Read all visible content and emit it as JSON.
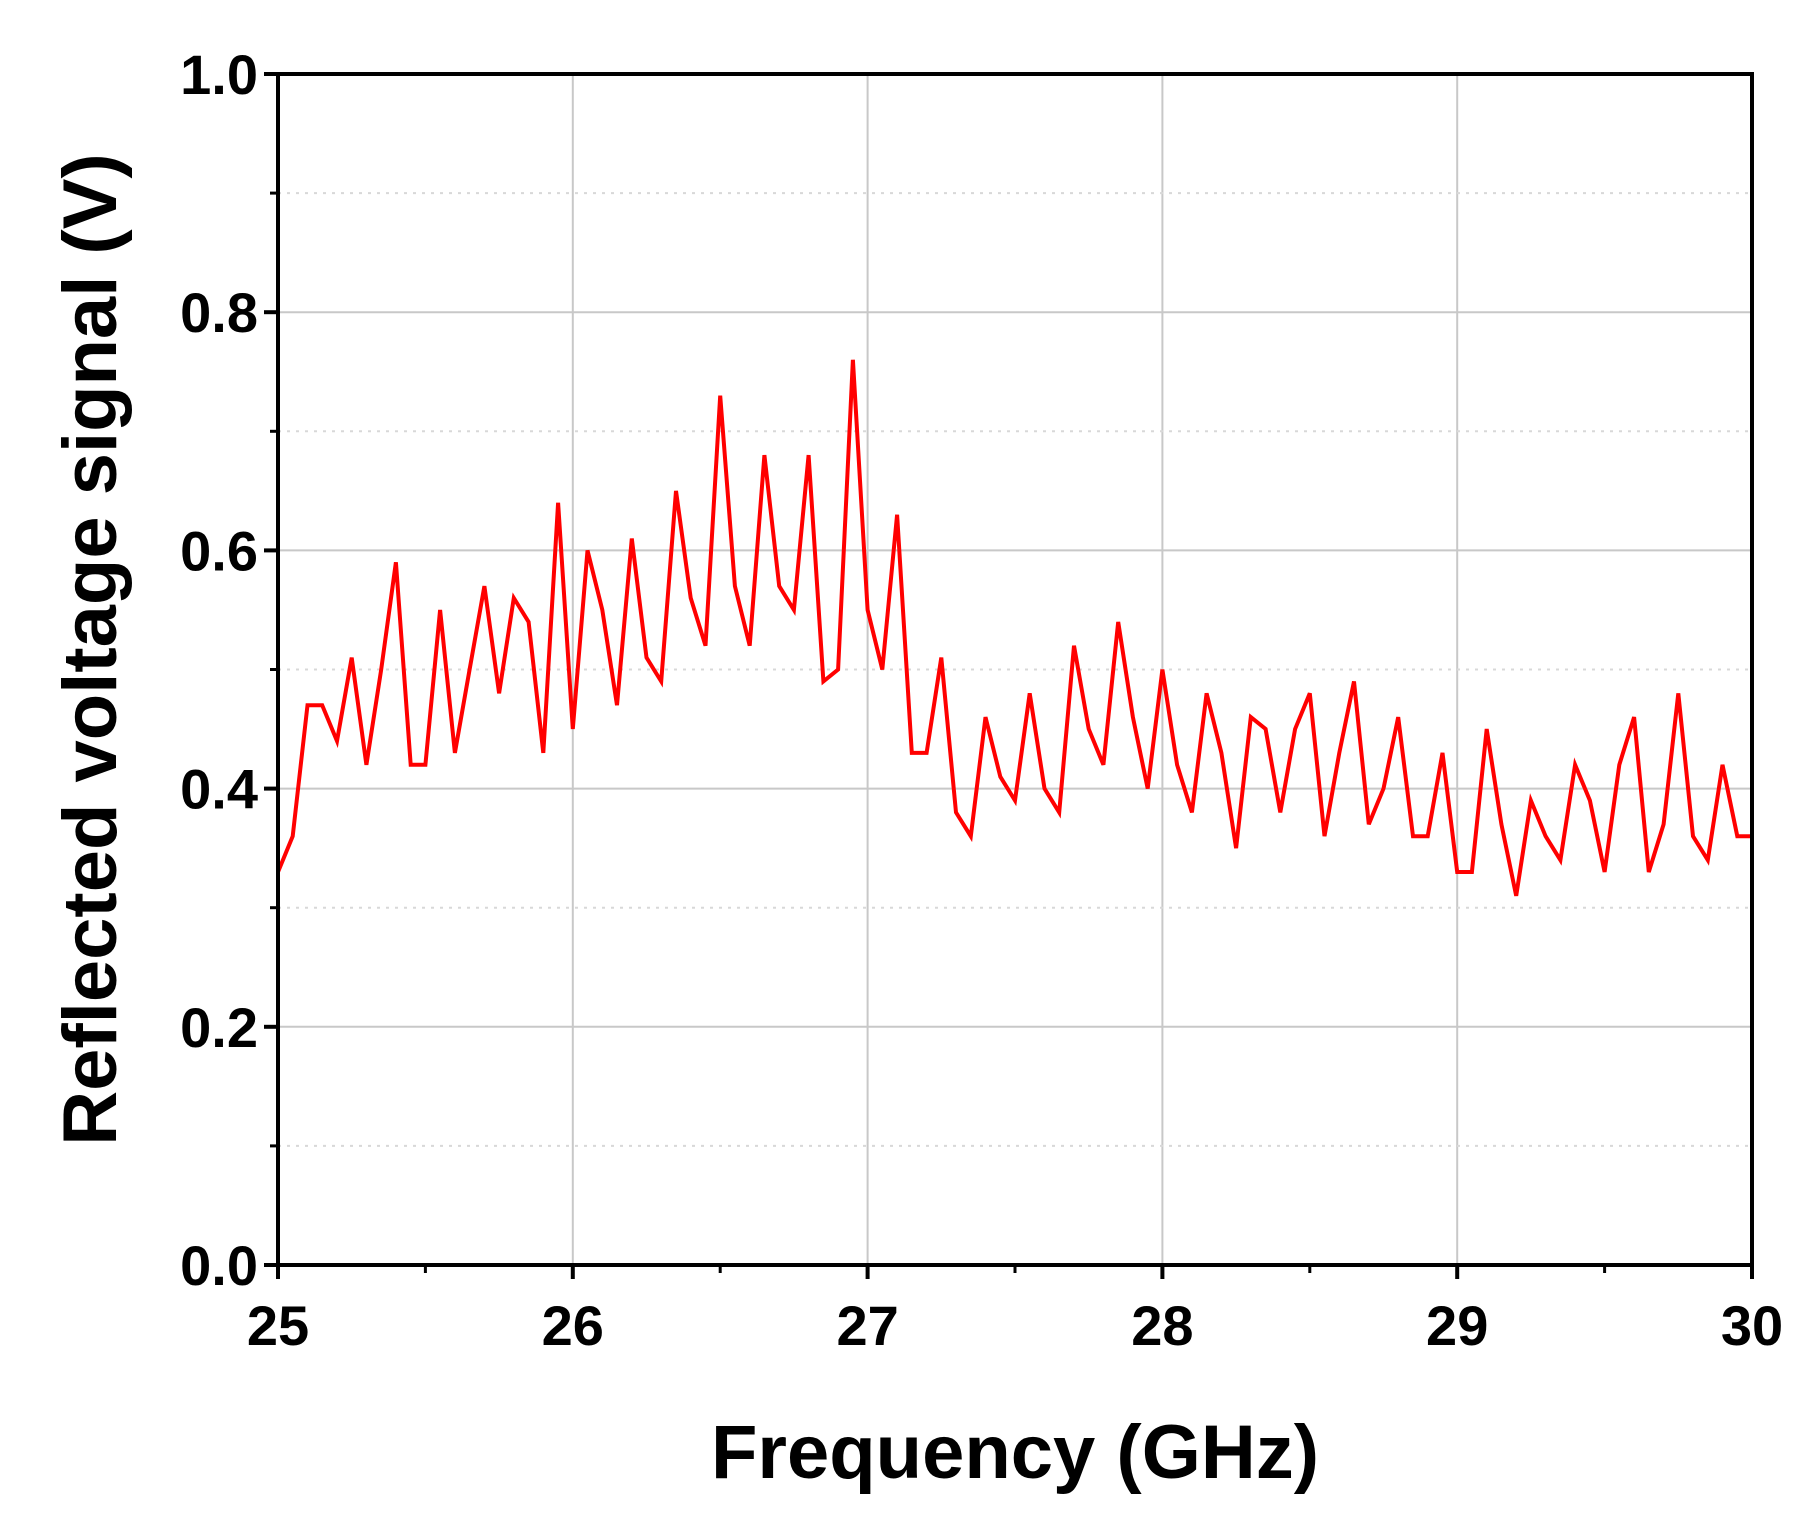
{
  "chart_data": {
    "type": "line",
    "title": "",
    "xlabel": "Frequency (GHz)",
    "ylabel": "Reflected voltage signal (V)",
    "xlim": [
      25,
      30
    ],
    "ylim": [
      0.0,
      1.0
    ],
    "x_ticks": [
      25,
      26,
      27,
      28,
      29,
      30
    ],
    "x_tick_labels": [
      "25",
      "26",
      "27",
      "28",
      "29",
      "30"
    ],
    "y_ticks": [
      0.0,
      0.2,
      0.4,
      0.6,
      0.8,
      1.0
    ],
    "y_tick_labels": [
      "0.0",
      "0.2",
      "0.4",
      "0.6",
      "0.8",
      "1.0"
    ],
    "grid": true,
    "legend": "none",
    "colors": {
      "line": "#ff0000",
      "axis": "#000000",
      "grid_major": "#c8c8c8",
      "grid_minor": "#d8d8d8"
    },
    "series": [
      {
        "x": [
          25.0,
          25.05,
          25.1,
          25.15,
          25.2,
          25.25,
          25.3,
          25.35,
          25.4,
          25.45,
          25.5,
          25.55,
          25.6,
          25.65,
          25.7,
          25.75,
          25.8,
          25.85,
          25.9,
          25.95,
          26.0,
          26.05,
          26.1,
          26.15,
          26.2,
          26.25,
          26.3,
          26.35,
          26.4,
          26.45,
          26.5,
          26.55,
          26.6,
          26.65,
          26.7,
          26.75,
          26.8,
          26.85,
          26.9,
          26.95,
          27.0,
          27.05,
          27.1,
          27.15,
          27.2,
          27.25,
          27.3,
          27.35,
          27.4,
          27.45,
          27.5,
          27.55,
          27.6,
          27.65,
          27.7,
          27.75,
          27.8,
          27.85,
          27.9,
          27.95,
          28.0,
          28.05,
          28.1,
          28.15,
          28.2,
          28.25,
          28.3,
          28.35,
          28.4,
          28.45,
          28.5,
          28.55,
          28.6,
          28.65,
          28.7,
          28.75,
          28.8,
          28.85,
          28.9,
          28.95,
          29.0,
          29.05,
          29.1,
          29.15,
          29.2,
          29.25,
          29.3,
          29.35,
          29.4,
          29.45,
          29.5,
          29.55,
          29.6,
          29.65,
          29.7,
          29.75,
          29.8,
          29.85,
          29.9,
          29.95,
          30.0
        ],
        "y": [
          0.33,
          0.36,
          0.47,
          0.47,
          0.44,
          0.51,
          0.42,
          0.5,
          0.59,
          0.42,
          0.42,
          0.55,
          0.43,
          0.5,
          0.57,
          0.48,
          0.56,
          0.54,
          0.43,
          0.64,
          0.45,
          0.6,
          0.55,
          0.47,
          0.61,
          0.51,
          0.49,
          0.65,
          0.56,
          0.52,
          0.73,
          0.57,
          0.52,
          0.68,
          0.57,
          0.55,
          0.68,
          0.49,
          0.5,
          0.76,
          0.55,
          0.5,
          0.63,
          0.43,
          0.43,
          0.51,
          0.38,
          0.36,
          0.46,
          0.41,
          0.39,
          0.48,
          0.4,
          0.38,
          0.52,
          0.45,
          0.42,
          0.54,
          0.46,
          0.4,
          0.5,
          0.42,
          0.38,
          0.48,
          0.43,
          0.35,
          0.46,
          0.45,
          0.38,
          0.45,
          0.48,
          0.36,
          0.43,
          0.49,
          0.37,
          0.4,
          0.46,
          0.36,
          0.36,
          0.43,
          0.33,
          0.33,
          0.45,
          0.37,
          0.31,
          0.39,
          0.36,
          0.34,
          0.42,
          0.39,
          0.33,
          0.42,
          0.46,
          0.33,
          0.37,
          0.48,
          0.36,
          0.34,
          0.42,
          0.36,
          0.36
        ]
      }
    ]
  }
}
